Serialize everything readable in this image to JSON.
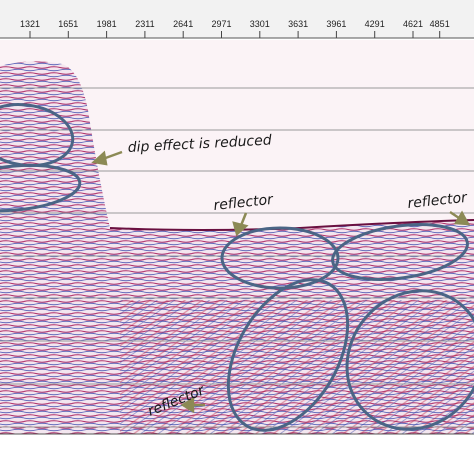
{
  "ruler": {
    "ticks": [
      1321,
      1651,
      1981,
      2311,
      2641,
      2971,
      3301,
      3631,
      3961,
      4291,
      4621,
      4851
    ]
  },
  "annotations": [
    "dip effect is reduced",
    "reflector",
    "reflector",
    "reflector"
  ]
}
